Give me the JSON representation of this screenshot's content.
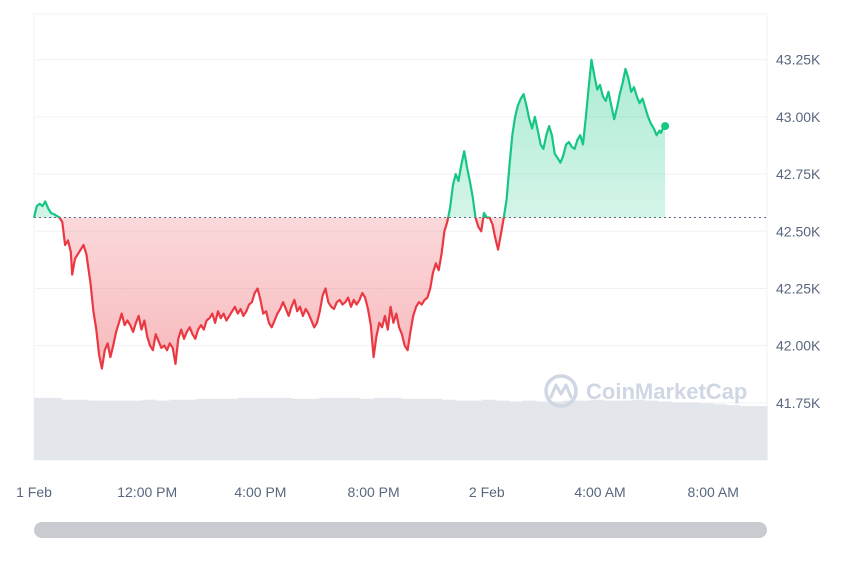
{
  "watermark": "CoinMarketCap",
  "colors": {
    "up": "#16c784",
    "down": "#ea3943",
    "grid": "#eff2f5",
    "axis_text": "#58667e",
    "volume": "#e3e6ea",
    "reference": "#58667e"
  },
  "chart_data": {
    "type": "area",
    "y_axis_side": "right",
    "grid": true,
    "ylim": [
      41500,
      43450
    ],
    "y_ticks": [
      {
        "value": 41750,
        "label": "41.75K"
      },
      {
        "value": 42000,
        "label": "42.00K"
      },
      {
        "value": 42250,
        "label": "42.25K"
      },
      {
        "value": 42500,
        "label": "42.50K"
      },
      {
        "value": 42750,
        "label": "42.75K"
      },
      {
        "value": 43000,
        "label": "43.00K"
      },
      {
        "value": 43250,
        "label": "43.25K"
      }
    ],
    "x_range_hours": [
      8,
      33.9
    ],
    "x_ticks": [
      {
        "hour": 8,
        "label": "1 Feb"
      },
      {
        "hour": 12,
        "label": "12:00 PM"
      },
      {
        "hour": 16,
        "label": "4:00 PM"
      },
      {
        "hour": 20,
        "label": "8:00 PM"
      },
      {
        "hour": 24,
        "label": "2 Feb"
      },
      {
        "hour": 28,
        "label": "4:00 AM"
      },
      {
        "hour": 32,
        "label": "8:00 AM"
      }
    ],
    "reference_price": 42560,
    "series": [
      {
        "values": [
          [
            8.0,
            42560
          ],
          [
            8.1,
            42610
          ],
          [
            8.2,
            42620
          ],
          [
            8.3,
            42610
          ],
          [
            8.4,
            42630
          ],
          [
            8.5,
            42600
          ],
          [
            8.6,
            42580
          ],
          [
            8.7,
            42575
          ],
          [
            8.9,
            42560
          ],
          [
            9.0,
            42540
          ],
          [
            9.1,
            42440
          ],
          [
            9.2,
            42460
          ],
          [
            9.3,
            42410
          ],
          [
            9.35,
            42310
          ],
          [
            9.45,
            42380
          ],
          [
            9.6,
            42410
          ],
          [
            9.75,
            42440
          ],
          [
            9.85,
            42400
          ],
          [
            10.0,
            42270
          ],
          [
            10.1,
            42150
          ],
          [
            10.2,
            42070
          ],
          [
            10.3,
            41960
          ],
          [
            10.4,
            41900
          ],
          [
            10.5,
            41980
          ],
          [
            10.6,
            42010
          ],
          [
            10.7,
            41950
          ],
          [
            10.8,
            42000
          ],
          [
            10.9,
            42060
          ],
          [
            11.0,
            42100
          ],
          [
            11.1,
            42140
          ],
          [
            11.2,
            42090
          ],
          [
            11.3,
            42110
          ],
          [
            11.4,
            42090
          ],
          [
            11.5,
            42060
          ],
          [
            11.6,
            42100
          ],
          [
            11.7,
            42130
          ],
          [
            11.8,
            42070
          ],
          [
            11.9,
            42110
          ],
          [
            12.0,
            42040
          ],
          [
            12.1,
            42000
          ],
          [
            12.2,
            41980
          ],
          [
            12.3,
            42050
          ],
          [
            12.4,
            42020
          ],
          [
            12.5,
            41990
          ],
          [
            12.6,
            42000
          ],
          [
            12.7,
            41980
          ],
          [
            12.8,
            42010
          ],
          [
            12.9,
            41990
          ],
          [
            13.0,
            41920
          ],
          [
            13.1,
            42030
          ],
          [
            13.2,
            42070
          ],
          [
            13.3,
            42030
          ],
          [
            13.4,
            42060
          ],
          [
            13.5,
            42080
          ],
          [
            13.6,
            42050
          ],
          [
            13.7,
            42030
          ],
          [
            13.8,
            42070
          ],
          [
            13.9,
            42090
          ],
          [
            14.0,
            42070
          ],
          [
            14.1,
            42110
          ],
          [
            14.2,
            42120
          ],
          [
            14.3,
            42140
          ],
          [
            14.4,
            42100
          ],
          [
            14.5,
            42150
          ],
          [
            14.6,
            42120
          ],
          [
            14.7,
            42140
          ],
          [
            14.8,
            42110
          ],
          [
            14.9,
            42130
          ],
          [
            15.0,
            42150
          ],
          [
            15.1,
            42170
          ],
          [
            15.2,
            42140
          ],
          [
            15.3,
            42160
          ],
          [
            15.4,
            42130
          ],
          [
            15.5,
            42150
          ],
          [
            15.6,
            42180
          ],
          [
            15.7,
            42190
          ],
          [
            15.8,
            42230
          ],
          [
            15.9,
            42250
          ],
          [
            16.0,
            42200
          ],
          [
            16.1,
            42140
          ],
          [
            16.2,
            42150
          ],
          [
            16.3,
            42100
          ],
          [
            16.4,
            42080
          ],
          [
            16.5,
            42110
          ],
          [
            16.6,
            42140
          ],
          [
            16.7,
            42160
          ],
          [
            16.8,
            42190
          ],
          [
            16.9,
            42160
          ],
          [
            17.0,
            42130
          ],
          [
            17.1,
            42170
          ],
          [
            17.2,
            42200
          ],
          [
            17.3,
            42150
          ],
          [
            17.4,
            42170
          ],
          [
            17.5,
            42130
          ],
          [
            17.6,
            42160
          ],
          [
            17.7,
            42140
          ],
          [
            17.8,
            42110
          ],
          [
            17.9,
            42080
          ],
          [
            18.0,
            42100
          ],
          [
            18.1,
            42150
          ],
          [
            18.2,
            42220
          ],
          [
            18.3,
            42250
          ],
          [
            18.4,
            42190
          ],
          [
            18.5,
            42170
          ],
          [
            18.6,
            42160
          ],
          [
            18.7,
            42190
          ],
          [
            18.8,
            42200
          ],
          [
            18.9,
            42180
          ],
          [
            19.0,
            42190
          ],
          [
            19.1,
            42210
          ],
          [
            19.2,
            42170
          ],
          [
            19.3,
            42200
          ],
          [
            19.4,
            42180
          ],
          [
            19.5,
            42200
          ],
          [
            19.6,
            42230
          ],
          [
            19.7,
            42210
          ],
          [
            19.8,
            42160
          ],
          [
            19.9,
            42090
          ],
          [
            20.0,
            41950
          ],
          [
            20.1,
            42040
          ],
          [
            20.2,
            42100
          ],
          [
            20.3,
            42080
          ],
          [
            20.4,
            42130
          ],
          [
            20.5,
            42070
          ],
          [
            20.6,
            42170
          ],
          [
            20.7,
            42100
          ],
          [
            20.8,
            42140
          ],
          [
            20.9,
            42080
          ],
          [
            21.0,
            42050
          ],
          [
            21.1,
            42000
          ],
          [
            21.2,
            41980
          ],
          [
            21.3,
            42060
          ],
          [
            21.4,
            42130
          ],
          [
            21.5,
            42170
          ],
          [
            21.6,
            42190
          ],
          [
            21.7,
            42180
          ],
          [
            21.8,
            42200
          ],
          [
            21.9,
            42210
          ],
          [
            22.0,
            42250
          ],
          [
            22.1,
            42320
          ],
          [
            22.2,
            42360
          ],
          [
            22.3,
            42330
          ],
          [
            22.4,
            42400
          ],
          [
            22.5,
            42500
          ],
          [
            22.6,
            42540
          ],
          [
            22.7,
            42600
          ],
          [
            22.8,
            42700
          ],
          [
            22.9,
            42750
          ],
          [
            23.0,
            42720
          ],
          [
            23.1,
            42790
          ],
          [
            23.2,
            42850
          ],
          [
            23.3,
            42780
          ],
          [
            23.4,
            42720
          ],
          [
            23.5,
            42650
          ],
          [
            23.6,
            42560
          ],
          [
            23.7,
            42520
          ],
          [
            23.8,
            42500
          ],
          [
            23.9,
            42580
          ],
          [
            24.0,
            42560
          ],
          [
            24.1,
            42560
          ],
          [
            24.2,
            42530
          ],
          [
            24.3,
            42470
          ],
          [
            24.4,
            42420
          ],
          [
            24.5,
            42490
          ],
          [
            24.6,
            42560
          ],
          [
            24.7,
            42640
          ],
          [
            24.8,
            42790
          ],
          [
            24.9,
            42920
          ],
          [
            25.0,
            43000
          ],
          [
            25.1,
            43050
          ],
          [
            25.2,
            43080
          ],
          [
            25.3,
            43100
          ],
          [
            25.4,
            43050
          ],
          [
            25.5,
            42990
          ],
          [
            25.6,
            42950
          ],
          [
            25.7,
            43000
          ],
          [
            25.8,
            42940
          ],
          [
            25.9,
            42880
          ],
          [
            26.0,
            42860
          ],
          [
            26.1,
            42920
          ],
          [
            26.2,
            42960
          ],
          [
            26.3,
            42920
          ],
          [
            26.4,
            42840
          ],
          [
            26.5,
            42820
          ],
          [
            26.6,
            42800
          ],
          [
            26.7,
            42830
          ],
          [
            26.8,
            42880
          ],
          [
            26.9,
            42890
          ],
          [
            27.0,
            42870
          ],
          [
            27.1,
            42860
          ],
          [
            27.2,
            42900
          ],
          [
            27.3,
            42920
          ],
          [
            27.4,
            42880
          ],
          [
            27.5,
            43000
          ],
          [
            27.6,
            43130
          ],
          [
            27.7,
            43250
          ],
          [
            27.8,
            43180
          ],
          [
            27.9,
            43120
          ],
          [
            28.0,
            43140
          ],
          [
            28.1,
            43090
          ],
          [
            28.2,
            43070
          ],
          [
            28.3,
            43110
          ],
          [
            28.4,
            43050
          ],
          [
            28.5,
            42990
          ],
          [
            28.6,
            43040
          ],
          [
            28.7,
            43100
          ],
          [
            28.8,
            43150
          ],
          [
            28.9,
            43210
          ],
          [
            29.0,
            43170
          ],
          [
            29.1,
            43110
          ],
          [
            29.2,
            43130
          ],
          [
            29.3,
            43090
          ],
          [
            29.4,
            43060
          ],
          [
            29.5,
            43080
          ],
          [
            29.6,
            43040
          ],
          [
            29.7,
            43000
          ],
          [
            29.8,
            42970
          ],
          [
            29.9,
            42950
          ],
          [
            30.0,
            42920
          ],
          [
            30.1,
            42940
          ],
          [
            30.15,
            42930
          ],
          [
            30.2,
            42945
          ],
          [
            30.3,
            42960
          ]
        ]
      }
    ],
    "volume": [
      0.69,
      0.69,
      0.67,
      0.67,
      0.66,
      0.66,
      0.66,
      0.66,
      0.67,
      0.66,
      0.67,
      0.67,
      0.68,
      0.68,
      0.68,
      0.69,
      0.69,
      0.69,
      0.69,
      0.68,
      0.68,
      0.69,
      0.69,
      0.69,
      0.68,
      0.69,
      0.69,
      0.68,
      0.68,
      0.68,
      0.67,
      0.66,
      0.66,
      0.67,
      0.66,
      0.65,
      0.66,
      0.65,
      0.65,
      0.66,
      0.66,
      0.67,
      0.66,
      0.66,
      0.67,
      0.66,
      0.65,
      0.64,
      0.64,
      0.63,
      0.62,
      0.61,
      0.6,
      0.6
    ]
  },
  "x_axis": [
    "1 Feb",
    "12:00 PM",
    "4:00 PM",
    "8:00 PM",
    "2 Feb",
    "4:00 AM",
    "8:00 AM"
  ]
}
